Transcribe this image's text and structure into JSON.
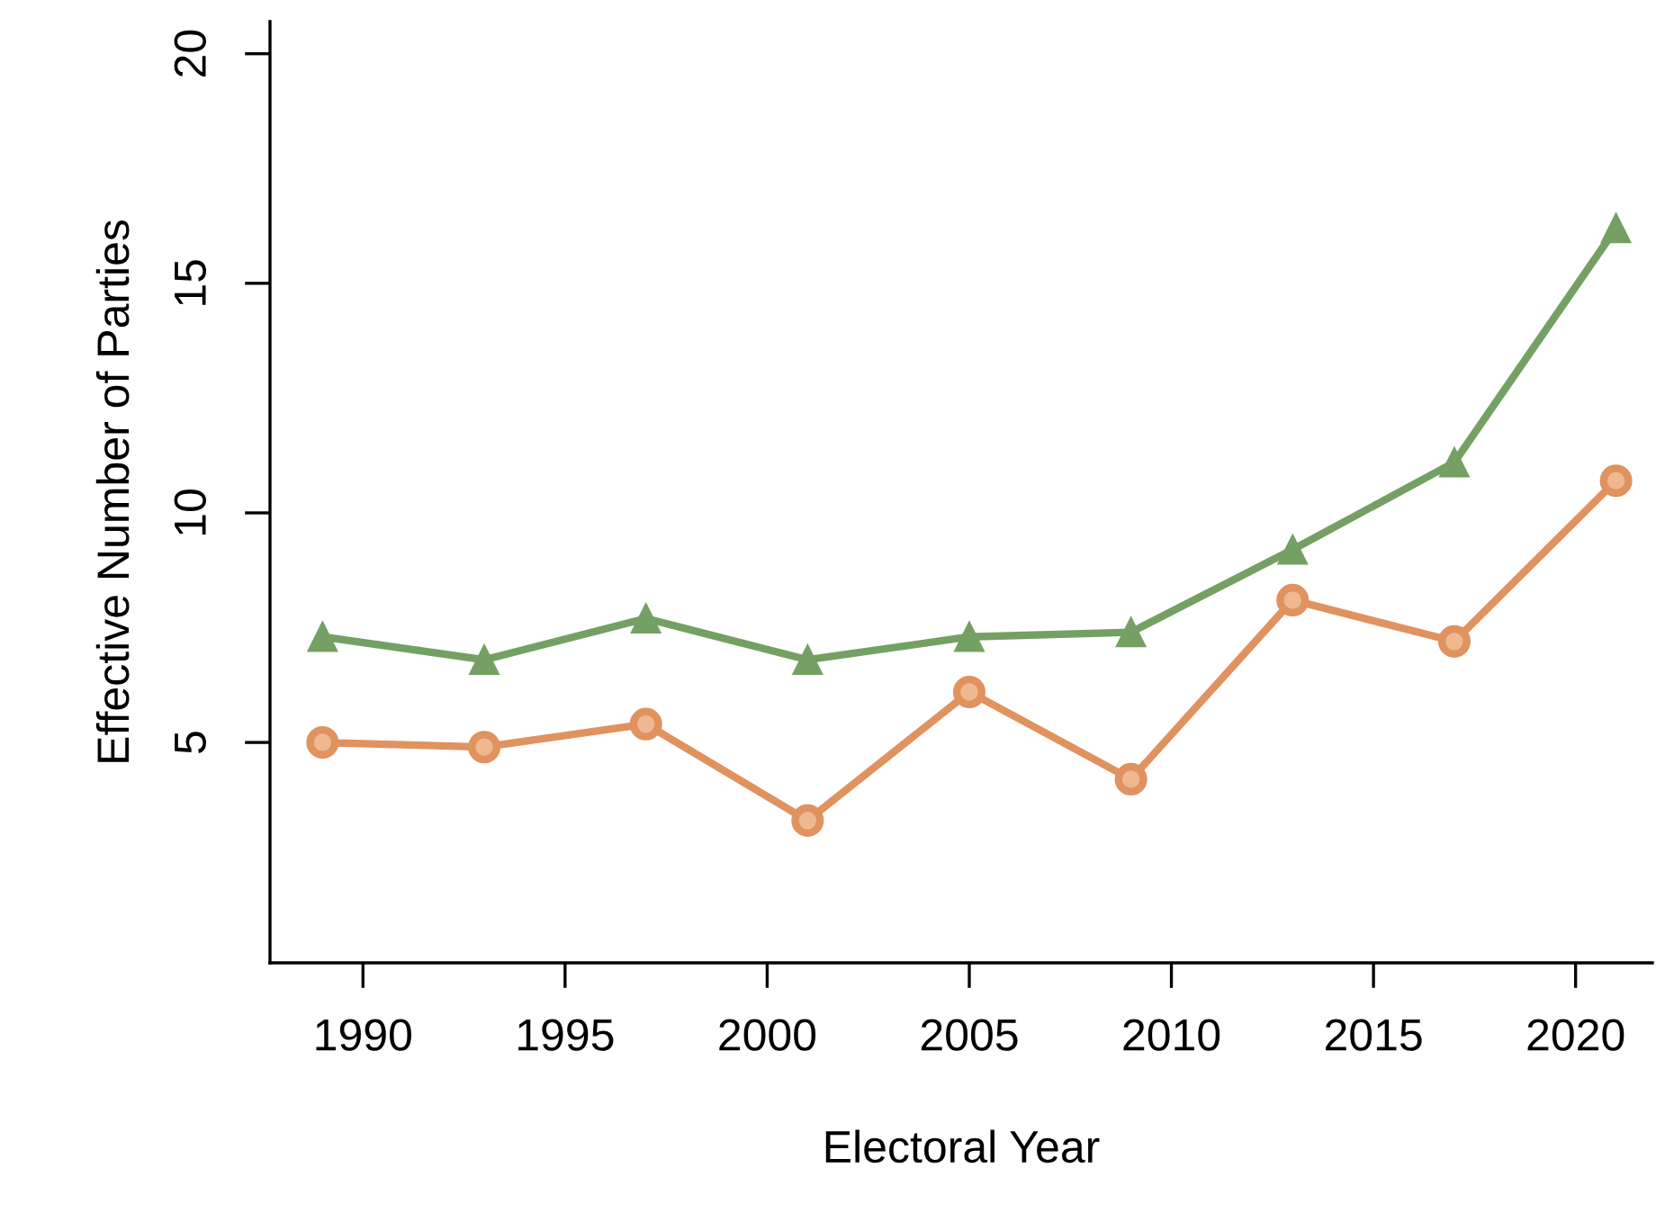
{
  "chart_data": {
    "type": "line",
    "xlabel": "Electoral Year",
    "ylabel": "Effective Number of Parties",
    "x": [
      1989,
      1993,
      1997,
      2001,
      2005,
      2009,
      2013,
      2017,
      2021
    ],
    "series": [
      {
        "color": "#75a064",
        "marker": "triangle",
        "values": [
          7.3,
          6.8,
          7.7,
          6.8,
          7.3,
          7.4,
          9.2,
          11.1,
          16.2
        ]
      },
      {
        "color": "#e0925f",
        "marker": "circle",
        "values": [
          5.0,
          4.9,
          5.4,
          3.3,
          6.1,
          4.2,
          8.1,
          7.2,
          10.7
        ]
      }
    ],
    "xlim": [
      1987.7,
      2021.9
    ],
    "xticks": [
      1990,
      1995,
      2000,
      2005,
      2010,
      2015,
      2020
    ],
    "ylim": [
      0.2,
      20.7
    ],
    "yticks": [
      5,
      10,
      15,
      20
    ],
    "grid": false,
    "legend": false,
    "line_style": "solid"
  }
}
